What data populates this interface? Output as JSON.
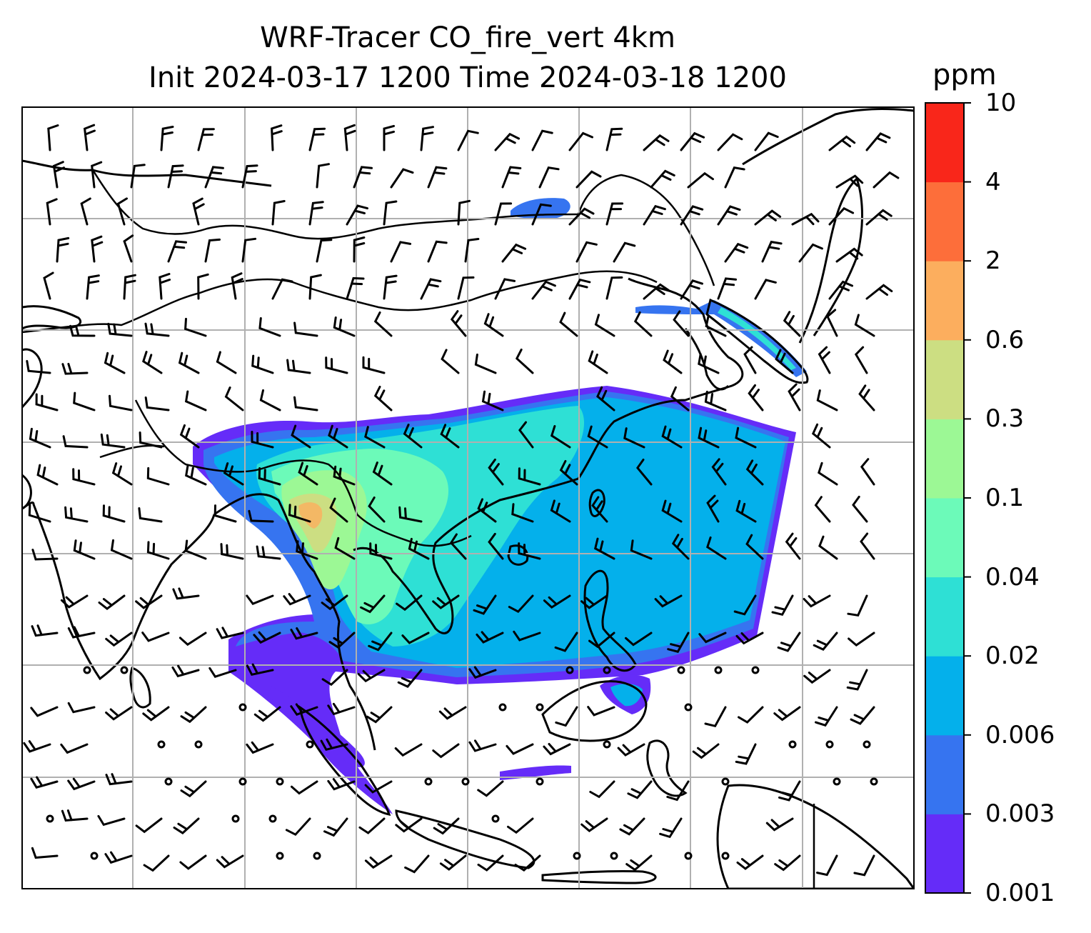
{
  "title": {
    "line1": "WRF-Tracer CO_fire_vert 4km",
    "line2": "Init 2024-03-17 1200 Time 2024-03-18 1200"
  },
  "colorbar": {
    "unit": "ppm",
    "levels": [
      "0.001",
      "0.003",
      "0.006",
      "0.02",
      "0.04",
      "0.1",
      "0.3",
      "0.6",
      "2",
      "4",
      "10"
    ],
    "colors": [
      "#652cf8",
      "#3674f0",
      "#04b0eb",
      "#2ee0d5",
      "#6cfab9",
      "#9cf895",
      "#ccde82",
      "#fcae5e",
      "#fd6e3a",
      "#f9261a"
    ]
  },
  "map": {
    "field": "CO_fire_vert",
    "grid": true,
    "features": [
      "coastlines",
      "country borders",
      "wind barbs"
    ]
  }
}
